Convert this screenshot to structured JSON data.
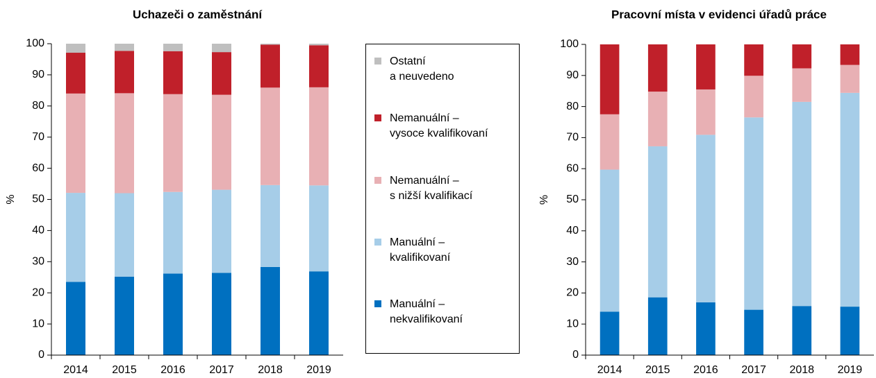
{
  "chart_data": [
    {
      "type": "stacked_bar",
      "title": "Uchazeči o zaměstnání",
      "ylabel": "%",
      "categories": [
        "2014",
        "2015",
        "2016",
        "2017",
        "2018",
        "2019"
      ],
      "ylim": [
        0,
        100
      ],
      "yticks": [
        0,
        10,
        20,
        30,
        40,
        50,
        60,
        70,
        80,
        90,
        100
      ],
      "grid": false,
      "series": [
        {
          "name": "Manuální –\nnekvalifikovaní",
          "color": "#0070c0",
          "values": [
            23.5,
            25.2,
            26.2,
            26.4,
            28.3,
            26.9
          ]
        },
        {
          "name": "Manuální –\nkvalifikovaní",
          "color": "#a6cde8",
          "values": [
            28.6,
            26.8,
            26.2,
            26.7,
            26.3,
            27.6
          ]
        },
        {
          "name": "Nemanuální –\ns nižší kvalifikací",
          "color": "#e8b0b4",
          "values": [
            31.9,
            32.1,
            31.4,
            30.5,
            31.3,
            31.5
          ]
        },
        {
          "name": "Nemanuální –\nvysoce kvalifikovaní",
          "color": "#c0202a",
          "values": [
            13.1,
            13.6,
            13.8,
            13.7,
            13.8,
            13.5
          ]
        },
        {
          "name": "Ostatní\na neuvedeno",
          "color": "#bfbfbf",
          "values": [
            2.9,
            2.3,
            2.4,
            2.7,
            0.3,
            0.5
          ]
        }
      ]
    },
    {
      "type": "stacked_bar",
      "title": "Pracovní místa v evidenci úřadů práce",
      "ylabel": "%",
      "categories": [
        "2014",
        "2015",
        "2016",
        "2017",
        "2018",
        "2019"
      ],
      "ylim": [
        0,
        100
      ],
      "yticks": [
        0,
        10,
        20,
        30,
        40,
        50,
        60,
        70,
        80,
        90,
        100
      ],
      "grid": false,
      "series": [
        {
          "color": "#0070c0",
          "values": [
            14.0,
            18.6,
            17.0,
            14.6,
            15.8,
            15.6
          ]
        },
        {
          "color": "#a6cde8",
          "values": [
            45.7,
            48.6,
            53.9,
            61.9,
            65.7,
            68.8
          ]
        },
        {
          "color": "#e8b0b4",
          "values": [
            17.8,
            17.6,
            14.6,
            13.4,
            10.8,
            9.0
          ]
        },
        {
          "color": "#c0202a",
          "values": [
            22.5,
            15.2,
            14.5,
            10.1,
            7.7,
            6.6
          ]
        }
      ]
    }
  ]
}
